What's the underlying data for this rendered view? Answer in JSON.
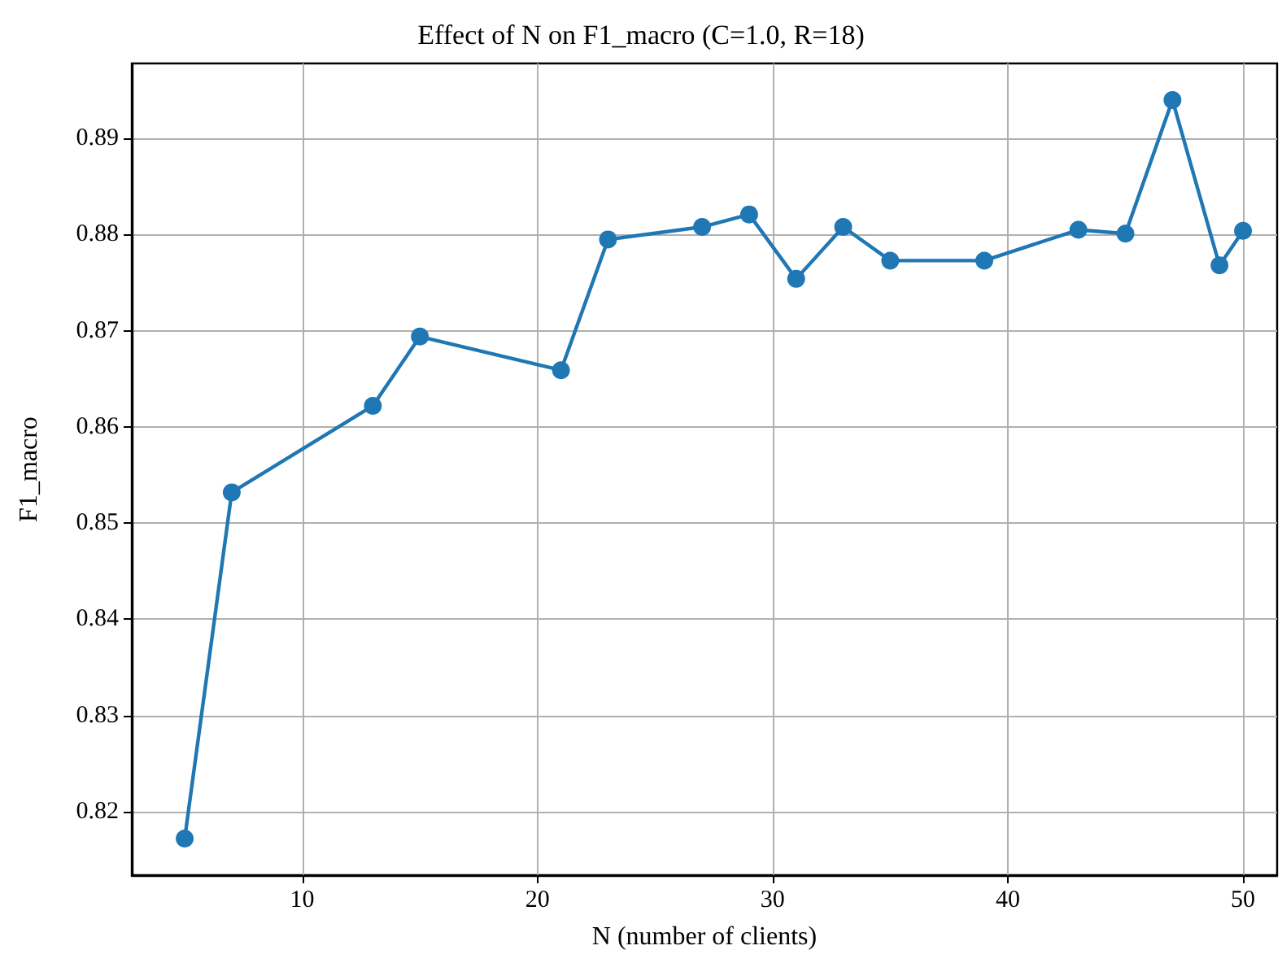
{
  "chart_data": {
    "type": "line",
    "title": "Effect of N on F1_macro (C=1.0, R=18)",
    "xlabel": "N (number of clients)",
    "ylabel": "F1_macro",
    "x": [
      5,
      7,
      13,
      15,
      21,
      23,
      27,
      29,
      31,
      33,
      35,
      39,
      43,
      45,
      47,
      49,
      50
    ],
    "series": [
      {
        "color": "#1f77b4",
        "values": [
          0.8172,
          0.8532,
          0.8622,
          0.8694,
          0.8659,
          0.8795,
          0.8808,
          0.8821,
          0.8754,
          0.8808,
          0.8773,
          0.8773,
          0.8805,
          0.8801,
          0.894,
          0.8768,
          0.8804
        ]
      }
    ],
    "xlim": [
      2.75,
      51.45
    ],
    "xticks": [
      10,
      20,
      30,
      40,
      50
    ],
    "ylim": [
      0.8134,
      0.8978
    ],
    "yticks": [
      0.82,
      0.83,
      0.84,
      0.85,
      0.86,
      0.87,
      0.88,
      0.89
    ],
    "grid": true,
    "marker": "circle",
    "line_style": "solid"
  }
}
